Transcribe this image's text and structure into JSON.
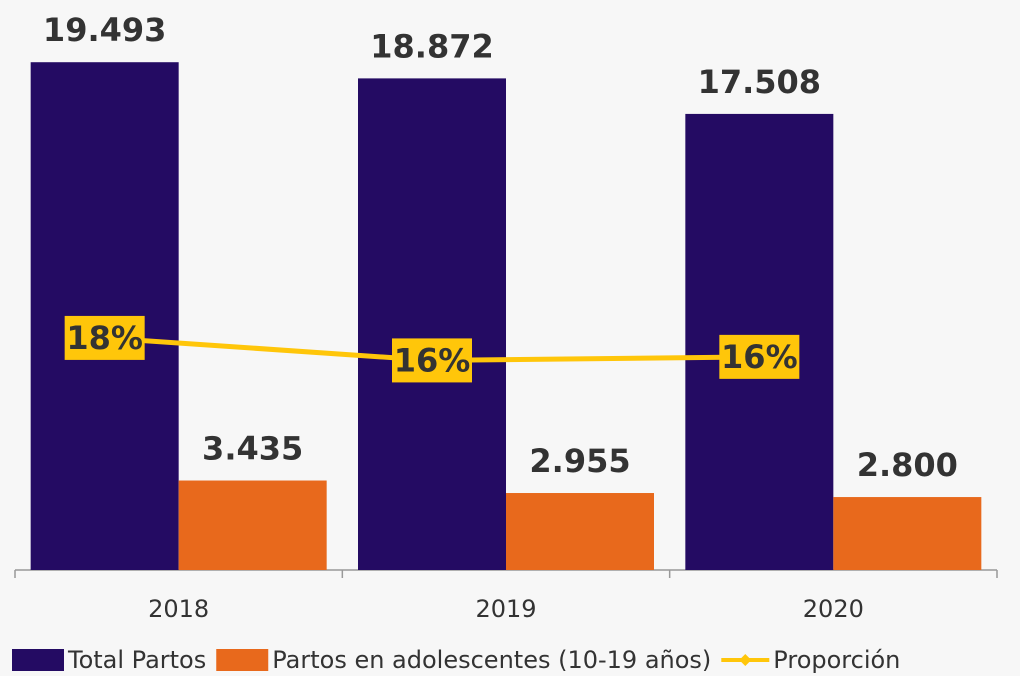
{
  "chart_data": {
    "type": "bar",
    "categories": [
      "2018",
      "2019",
      "2020"
    ],
    "series": [
      {
        "name": "Total Partos",
        "color": "#240b63",
        "values": [
          19493,
          18872,
          17508
        ],
        "value_labels": [
          "19.493",
          "18.872",
          "17.508"
        ]
      },
      {
        "name": "Partos en adolescentes (10-19 años)",
        "color": "#e8691c",
        "values": [
          3435,
          2955,
          2800
        ],
        "value_labels": [
          "3.435",
          "2.955",
          "2.800"
        ]
      },
      {
        "name": "Proporción",
        "type": "line",
        "axis": "y2",
        "color": "#ffc60a",
        "values": [
          17.6,
          15.7,
          16.0
        ],
        "value_labels": [
          "18%",
          "16%",
          "16%"
        ]
      }
    ],
    "ylim": [
      0,
      20000
    ],
    "y2lim": [
      -2,
      42
    ],
    "legend": "bottom"
  }
}
